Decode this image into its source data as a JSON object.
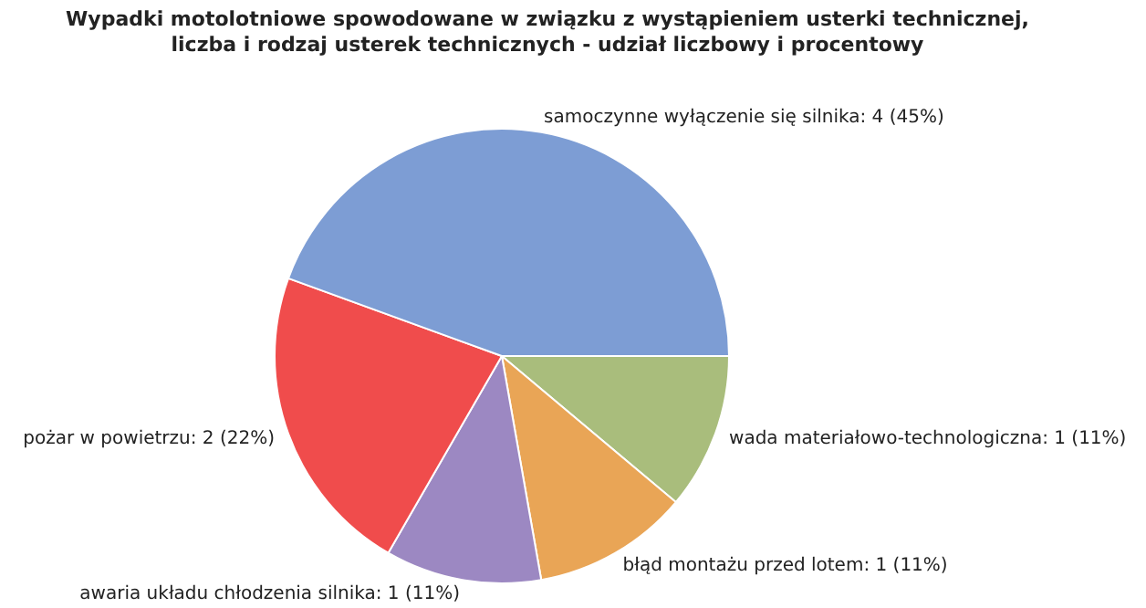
{
  "chart_data": {
    "type": "pie",
    "title": "Wypadki motolotniowe spowodowane w związku z wystąpieniem usterki technicznej, liczba i rodzaj usterek technicznych - udział liczbowy i procentowy",
    "categories": [
      "wada materiałowo-technologiczna",
      "błąd montażu przed lotem",
      "awaria układu chłodzenia silnika",
      "pożar w powietrzu",
      "samoczynne wyłączenie się silnika"
    ],
    "values": [
      1,
      1,
      1,
      2,
      4
    ],
    "value_labels": [
      "1 (11%)",
      "1 (11%)",
      "1 (11%)",
      "2 (22%)",
      "4 (45%)"
    ],
    "colors": [
      "#a9bd7c",
      "#e9a556",
      "#9c88c2",
      "#f04c4c",
      "#7d9dd4"
    ],
    "legend": false
  }
}
